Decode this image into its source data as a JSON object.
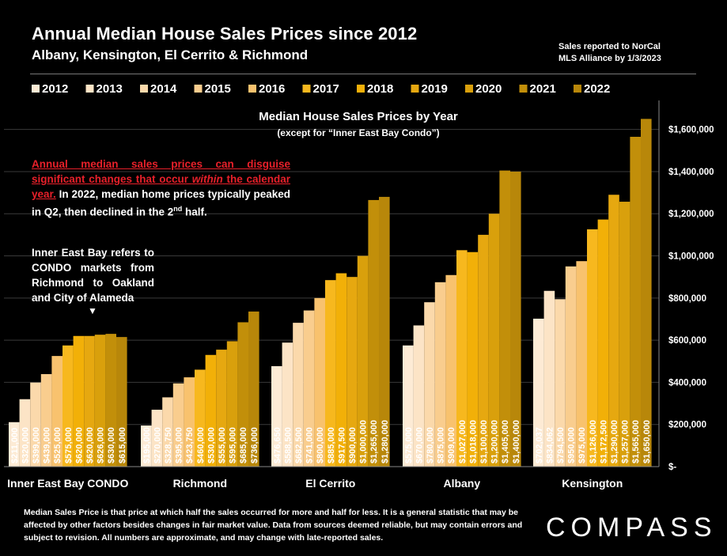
{
  "header": {
    "title": "Annual Median House Sales Prices since 2012",
    "subtitle": "Albany, Kensington, El Cerrito & Richmond",
    "source_line1": "Sales reported to NorCal",
    "source_line2": "MLS Alliance by 1/3/2023"
  },
  "annotations": {
    "red_part1": "Annual median sales prices can disguise significant changes that occur ",
    "red_italic": "within",
    "red_part2": " the calendar year.",
    "black_part1": " In 2022, median home prices typically peaked in Q2, then declined in the 2",
    "black_sup": "nd",
    "black_part2": " half.",
    "inner_east_bay": "Inner East Bay refers to CONDO markets from Richmond to Oakland and City of Alameda",
    "arrow": "▼"
  },
  "footer": {
    "text": "Median Sales Price is that price at which half the sales occurred for more and half for less. It is a general statistic that may be affected by other factors besides changes in fair market value. Data from sources deemed reliable, but may contain errors and subject to revision.  All numbers are approximate, and may change with late-reported sales.",
    "logo": "COMPASS"
  },
  "colors": {
    "year_colors": [
      "#fdebd5",
      "#fce4c6",
      "#fbd9ab",
      "#f9cd8e",
      "#f8c26e",
      "#f7b81e",
      "#f2b008",
      "#e6a810",
      "#d9a00c",
      "#c28f0a",
      "#b8870a"
    ]
  },
  "chart_data": {
    "type": "bar",
    "title": "Median House Sales Prices by Year",
    "subtitle": "(except for “Inner East Bay Condo”)",
    "legend_position": "top",
    "categories": [
      "Inner East Bay CONDO",
      "Richmond",
      "El Cerrito",
      "Albany",
      "Kensington"
    ],
    "years": [
      "2012",
      "2013",
      "2014",
      "2015",
      "2016",
      "2017",
      "2018",
      "2019",
      "2020",
      "2021",
      "2022"
    ],
    "ylim": [
      0,
      1700000
    ],
    "yticks": [
      0,
      200000,
      400000,
      600000,
      800000,
      1000000,
      1200000,
      1400000,
      1600000
    ],
    "ytick_labels": [
      "$-",
      "$200,000",
      "$400,000",
      "$600,000",
      "$800,000",
      "$1,000,000",
      "$1,200,000",
      "$1,400,000",
      "$1,600,000"
    ],
    "series_values": [
      [
        211000,
        320000,
        399000,
        439000,
        525000,
        575000,
        620000,
        620000,
        626000,
        630000,
        615000
      ],
      [
        195000,
        270000,
        328750,
        395000,
        423750,
        460000,
        530000,
        555000,
        595000,
        685000,
        736000
      ],
      [
        476650,
        588500,
        682500,
        741000,
        800000,
        885000,
        917500,
        900000,
        1000000,
        1265000,
        1280000
      ],
      [
        575000,
        670000,
        780000,
        875000,
        909000,
        1027000,
        1018000,
        1100000,
        1200000,
        1405000,
        1400000
      ],
      [
        702037,
        834062,
        794500,
        950000,
        975000,
        1126000,
        1172500,
        1290000,
        1257000,
        1565000,
        1650000
      ]
    ],
    "data_labels": [
      [
        "$211,000",
        "$320,000",
        "$399,000",
        "$439,000",
        "$525,000",
        "$575,000",
        "$620,000",
        "$620,000",
        "$626,000",
        "$630,000",
        "$615,000"
      ],
      [
        "$195,000",
        "$270,000",
        "$328,750",
        "$395,000",
        "$423,750",
        "$460,000",
        "$530,000",
        "$555,000",
        "$595,000",
        "$685,000",
        "$736,000"
      ],
      [
        "$476,650",
        "$588,500",
        "$682,500",
        "$741,000",
        "$800,000",
        "$885,000",
        "$917,500",
        "$900,000",
        "$1,000,000",
        "$1,265,000",
        "$1,280,000"
      ],
      [
        "$575,000",
        "$670,000",
        "$780,000",
        "$875,000",
        "$909,000",
        "$1,027,000",
        "$1,018,000",
        "$1,100,000",
        "$1,200,000",
        "$1,405,000",
        "$1,400,000"
      ],
      [
        "$702,037",
        "$834,062",
        "$794,500",
        "$950,000",
        "$975,000",
        "$1,126,000",
        "$1,172,500",
        "$1,290,000",
        "$1,257,000",
        "$1,565,000",
        "$1,650,000"
      ]
    ]
  }
}
